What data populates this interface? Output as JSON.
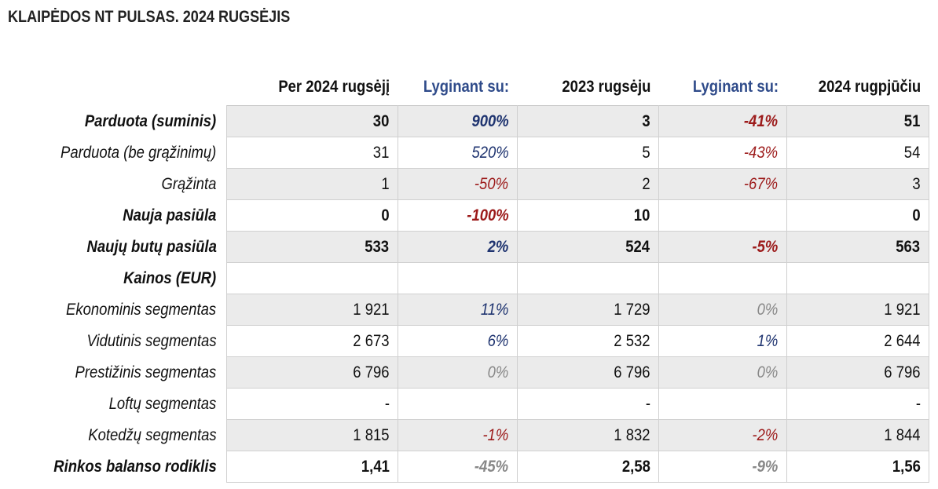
{
  "title": "KLAIPĖDOS NT PULSAS. 2024 RUGSĖJIS",
  "headers": [
    "Per 2024 rugsėjį",
    "Lyginant su:",
    "2023 rugsėju",
    "Lyginant su:",
    "2024 rugpjūčiu"
  ],
  "colors": {
    "highlight_header": "#2f4b8a",
    "positive": "#1f3470",
    "negative": "#9c1a1a",
    "neutral": "#888888",
    "shade": "#ebebeb"
  },
  "rows": [
    {
      "label": "Parduota (suminis)",
      "bold": true,
      "shade": true,
      "cells": [
        "30",
        "900%",
        "3",
        "-41%",
        "51"
      ],
      "tones": [
        "",
        "blue",
        "",
        "red",
        ""
      ]
    },
    {
      "label": "Parduota (be grąžinimų)",
      "bold": false,
      "shade": false,
      "cells": [
        "31",
        "520%",
        "5",
        "-43%",
        "54"
      ],
      "tones": [
        "",
        "blue",
        "",
        "red",
        ""
      ]
    },
    {
      "label": "Grąžinta",
      "bold": false,
      "shade": true,
      "cells": [
        "1",
        "-50%",
        "2",
        "-67%",
        "3"
      ],
      "tones": [
        "",
        "red",
        "",
        "red",
        ""
      ]
    },
    {
      "label": "Nauja pasiūla",
      "bold": true,
      "shade": false,
      "cells": [
        "0",
        "-100%",
        "10",
        "",
        "0"
      ],
      "tones": [
        "",
        "red",
        "",
        "",
        ""
      ]
    },
    {
      "label": "Naujų butų pasiūla",
      "bold": true,
      "shade": true,
      "cells": [
        "533",
        "2%",
        "524",
        "-5%",
        "563"
      ],
      "tones": [
        "",
        "blue",
        "",
        "red",
        ""
      ]
    },
    {
      "label": "Kainos (EUR)",
      "bold": true,
      "shade": false,
      "cells": [
        "",
        "",
        "",
        "",
        ""
      ],
      "tones": [
        "",
        "",
        "",
        "",
        ""
      ]
    },
    {
      "label": "Ekonominis segmentas",
      "bold": false,
      "shade": true,
      "cells": [
        "1 921",
        "11%",
        "1 729",
        "0%",
        "1 921"
      ],
      "tones": [
        "",
        "blue",
        "",
        "grey",
        ""
      ]
    },
    {
      "label": "Vidutinis segmentas",
      "bold": false,
      "shade": false,
      "cells": [
        "2 673",
        "6%",
        "2 532",
        "1%",
        "2 644"
      ],
      "tones": [
        "",
        "blue",
        "",
        "blue",
        ""
      ]
    },
    {
      "label": "Prestižinis segmentas",
      "bold": false,
      "shade": true,
      "cells": [
        "6 796",
        "0%",
        "6 796",
        "0%",
        "6 796"
      ],
      "tones": [
        "",
        "grey",
        "",
        "grey",
        ""
      ]
    },
    {
      "label": "Loftų segmentas",
      "bold": false,
      "shade": false,
      "cells": [
        "-",
        "",
        "-",
        "",
        "-"
      ],
      "tones": [
        "",
        "",
        "",
        "",
        ""
      ]
    },
    {
      "label": "Kotedžų segmentas",
      "bold": false,
      "shade": true,
      "cells": [
        "1 815",
        "-1%",
        "1 832",
        "-2%",
        "1 844"
      ],
      "tones": [
        "",
        "red",
        "",
        "red",
        ""
      ]
    },
    {
      "label": "Rinkos balanso rodiklis",
      "bold": true,
      "shade": false,
      "cells": [
        "1,41",
        "-45%",
        "2,58",
        "-9%",
        "1,56"
      ],
      "tones": [
        "",
        "grey",
        "",
        "grey",
        ""
      ]
    }
  ]
}
